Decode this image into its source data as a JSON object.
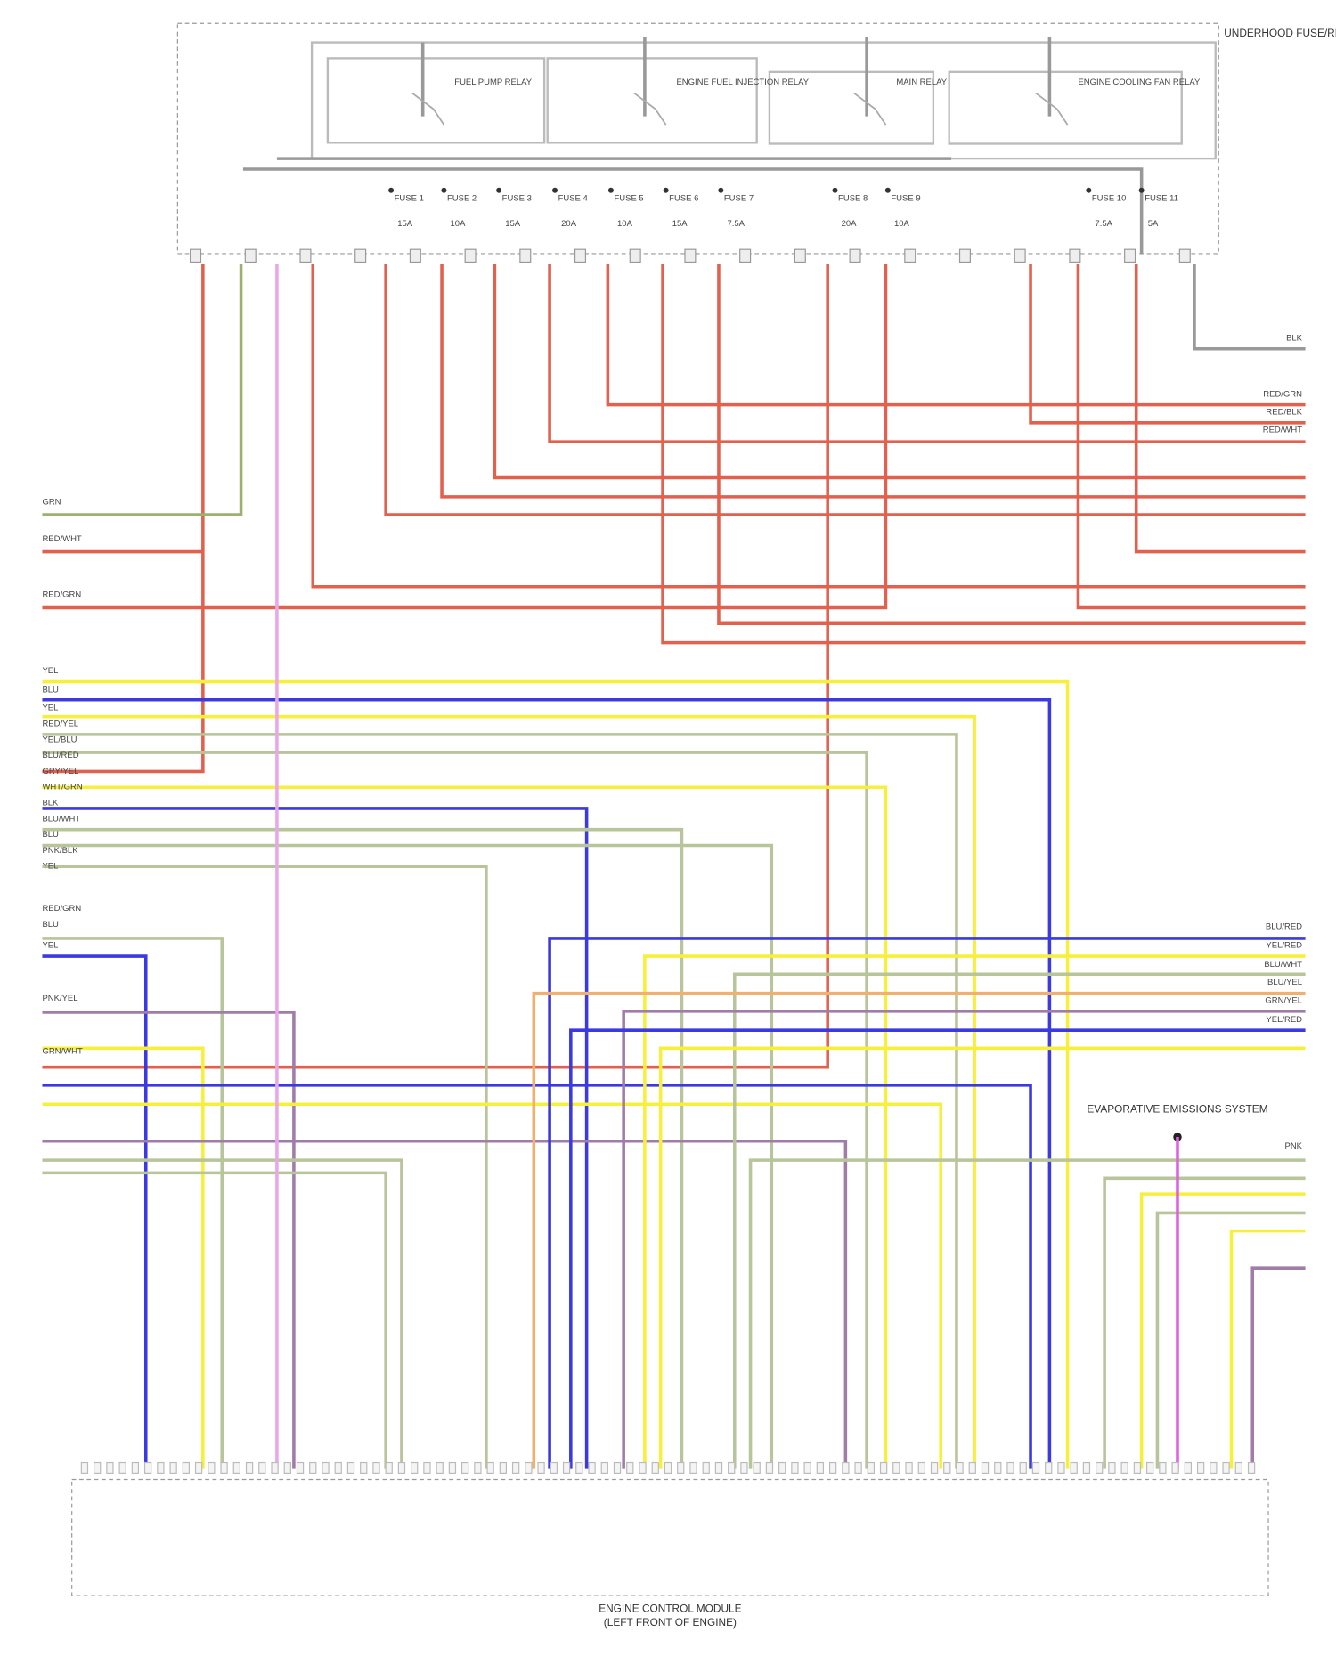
{
  "fuse_box": {
    "label": "UNDERHOOD FUSE/RELAY BOX"
  },
  "relays": [
    {
      "label": "FUEL PUMP RELAY"
    },
    {
      "label": "ENGINE FUEL INJECTION RELAY"
    },
    {
      "label": "MAIN RELAY"
    },
    {
      "label": "ENGINE COOLING FAN RELAY"
    }
  ],
  "fuses": [
    {
      "label": "FUSE 1",
      "rating": "15A"
    },
    {
      "label": "FUSE 2",
      "rating": "10A"
    },
    {
      "label": "FUSE 3",
      "rating": "15A"
    },
    {
      "label": "FUSE 4",
      "rating": "20A"
    },
    {
      "label": "FUSE 5",
      "rating": "10A"
    },
    {
      "label": "FUSE 6",
      "rating": "15A"
    },
    {
      "label": "FUSE 7",
      "rating": "7.5A"
    },
    {
      "label": "FUSE 8",
      "rating": "20A"
    },
    {
      "label": "FUSE 9",
      "rating": "10A"
    },
    {
      "label": "FUSE 10",
      "rating": "7.5A"
    },
    {
      "label": "FUSE 11",
      "rating": "5A"
    }
  ],
  "left_wires": [
    "GRN",
    "RED/WHT",
    "RED/GRN",
    "YEL",
    "BLU",
    "YEL",
    "RED/YEL",
    "YEL/BLU",
    "BLU/RED",
    "GRY/YEL",
    "WHT/GRN",
    "BLK",
    "BLU/WHT",
    "BLU",
    "PNK/BLK",
    "YEL",
    "RED/GRN",
    "BLU",
    "YEL",
    "PNK/YEL",
    "GRN/WHT"
  ],
  "right_wires": [
    "BLK",
    "RED/GRN",
    "RED/BLK",
    "RED/WHT",
    "BLU/RED",
    "YEL/RED",
    "BLU/WHT",
    "BLU/YEL",
    "GRN/YEL",
    "YEL/RED",
    "PNK"
  ],
  "annotation": "EVAPORATIVE EMISSIONS SYSTEM",
  "module": {
    "label": "ENGINE CONTROL MODULE",
    "location": "(LEFT FRONT OF ENGINE)"
  }
}
